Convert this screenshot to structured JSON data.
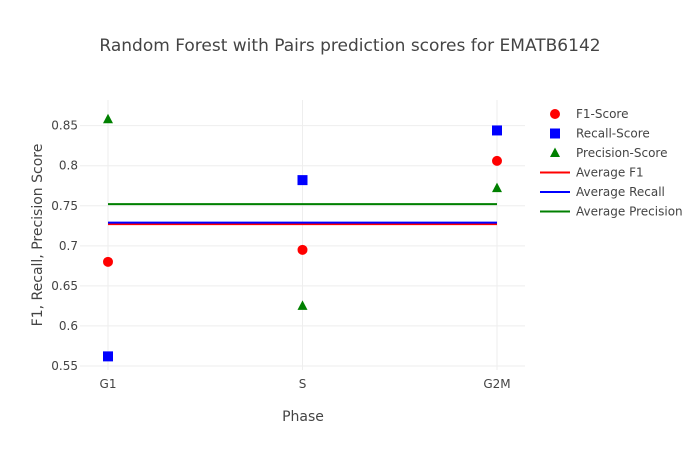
{
  "chart_data": {
    "type": "scatter",
    "title": "Random Forest with Pairs prediction scores for EMATB6142",
    "xlabel": "Phase",
    "ylabel": "F1, Recall, Precision Score",
    "categories": [
      "G1",
      "S",
      "G2M"
    ],
    "ylim": [
      0.545,
      0.882
    ],
    "yticks": [
      0.55,
      0.6,
      0.65,
      0.7,
      0.75,
      0.8,
      0.85
    ],
    "ytick_labels": [
      "0.55",
      "0.6",
      "0.65",
      "0.7",
      "0.75",
      "0.8",
      "0.85"
    ],
    "grid": true,
    "legend_position": "right",
    "series": [
      {
        "name": "F1-Score",
        "kind": "markers",
        "symbol": "circle",
        "color": "#ff0000",
        "values": [
          0.68,
          0.695,
          0.806
        ]
      },
      {
        "name": "Recall-Score",
        "kind": "markers",
        "symbol": "square",
        "color": "#0000ff",
        "values": [
          0.562,
          0.782,
          0.844
        ]
      },
      {
        "name": "Precision-Score",
        "kind": "markers",
        "symbol": "triangle-up",
        "color": "#008000",
        "values": [
          0.858,
          0.625,
          0.772
        ]
      },
      {
        "name": "Average F1",
        "kind": "line",
        "color": "#ff0000",
        "values": [
          0.727,
          0.727,
          0.727
        ]
      },
      {
        "name": "Average Recall",
        "kind": "line",
        "color": "#0000ff",
        "values": [
          0.729,
          0.729,
          0.729
        ]
      },
      {
        "name": "Average Precision",
        "kind": "line",
        "color": "#008000",
        "values": [
          0.752,
          0.752,
          0.752
        ]
      }
    ]
  }
}
